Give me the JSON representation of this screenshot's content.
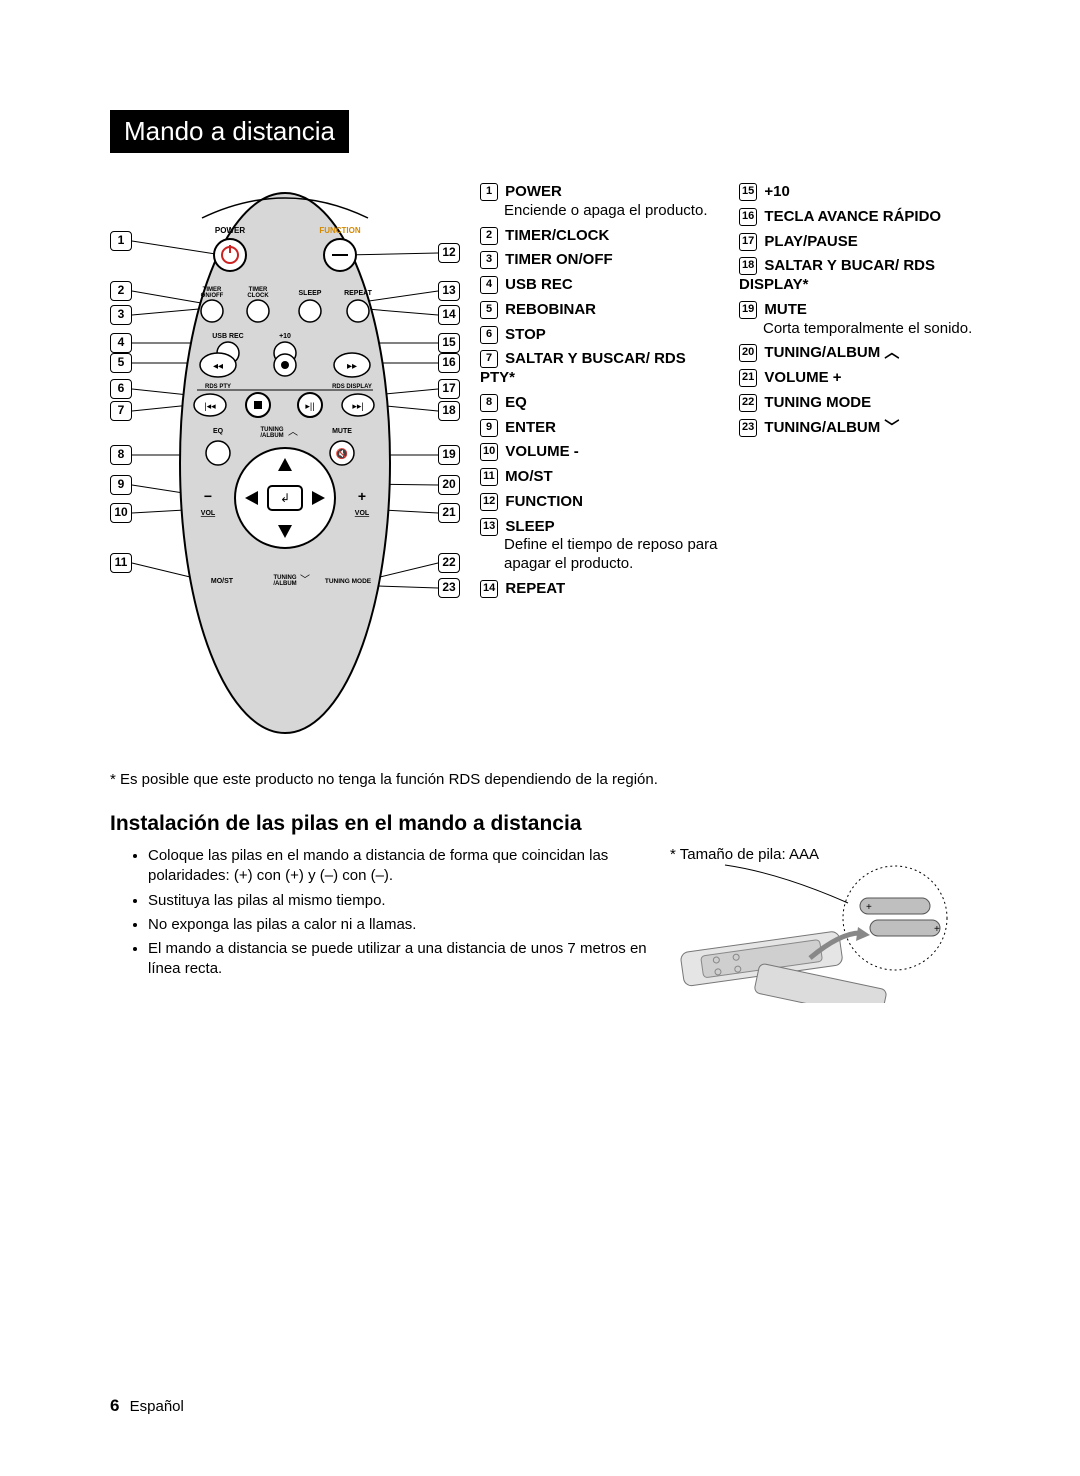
{
  "title": "Mando a distancia",
  "remote_labels": {
    "power": "POWER",
    "function": "FUNCTION",
    "timer_onoff": "TIMER ON/OFF",
    "timer_clock": "TIMER CLOCK",
    "sleep": "SLEEP",
    "repeat": "REPEAT",
    "usb_rec": "USB REC",
    "plus10": "+10",
    "rds_pty": "RDS PTY",
    "rds_display": "RDS DISPLAY",
    "eq": "EQ",
    "tuning_album": "TUNING /ALBUM",
    "mute": "MUTE",
    "vol_minus": "VOL",
    "vol_plus": "VOL",
    "most": "MO/ST",
    "tuning_album2": "TUNING /ALBUM",
    "tuning_mode": "TUNING MODE"
  },
  "left_callouts": [
    1,
    2,
    3,
    4,
    5,
    6,
    7,
    8,
    9,
    10,
    11
  ],
  "right_callouts": [
    12,
    13,
    14,
    15,
    16,
    17,
    18,
    19,
    20,
    21,
    22,
    23
  ],
  "legend_left": [
    {
      "n": 1,
      "label": "POWER",
      "desc": "Enciende o apaga el producto."
    },
    {
      "n": 2,
      "label": "TIMER/CLOCK"
    },
    {
      "n": 3,
      "label": "TIMER ON/OFF"
    },
    {
      "n": 4,
      "label": "USB REC"
    },
    {
      "n": 5,
      "label": "REBOBINAR"
    },
    {
      "n": 6,
      "label": "STOP"
    },
    {
      "n": 7,
      "label": "SALTAR Y BUSCAR/ RDS PTY*"
    },
    {
      "n": 8,
      "label": "EQ"
    },
    {
      "n": 9,
      "label": "ENTER"
    },
    {
      "n": 10,
      "label": "VOLUME -"
    },
    {
      "n": 11,
      "label": "MO/ST"
    },
    {
      "n": 12,
      "label": "FUNCTION"
    },
    {
      "n": 13,
      "label": "SLEEP",
      "desc": "Define el tiempo de reposo para apagar el producto."
    },
    {
      "n": 14,
      "label": "REPEAT"
    }
  ],
  "legend_right": [
    {
      "n": 15,
      "label": "+10"
    },
    {
      "n": 16,
      "label": "TECLA AVANCE RÁPIDO"
    },
    {
      "n": 17,
      "label": "PLAY/PAUSE"
    },
    {
      "n": 18,
      "label": "SALTAR Y BUCAR/ RDS DISPLAY*"
    },
    {
      "n": 19,
      "label": "MUTE",
      "desc": "Corta temporalmente el sonido."
    },
    {
      "n": 20,
      "label": "TUNING/ALBUM ︿"
    },
    {
      "n": 21,
      "label": "VOLUME +"
    },
    {
      "n": 22,
      "label": "TUNING MODE"
    },
    {
      "n": 23,
      "label": "TUNING/ALBUM ﹀"
    }
  ],
  "rds_note": "*  Es posible que este producto no tenga la función RDS dependiendo de la región.",
  "sub_heading": "Instalación de las pilas en el mando a distancia",
  "install_bullets": [
    "Coloque las pilas en el mando a distancia de forma que coincidan las polaridades: (+) con (+) y (–) con (–).",
    "Sustituya las pilas al mismo tiempo.",
    "No exponga las pilas a calor ni a llamas.",
    "El mando a distancia se puede utilizar a una distancia de unos 7 metros en línea recta."
  ],
  "battery_note": "* Tamaño de pila: AAA",
  "page_number": "6",
  "page_lang": "Español"
}
